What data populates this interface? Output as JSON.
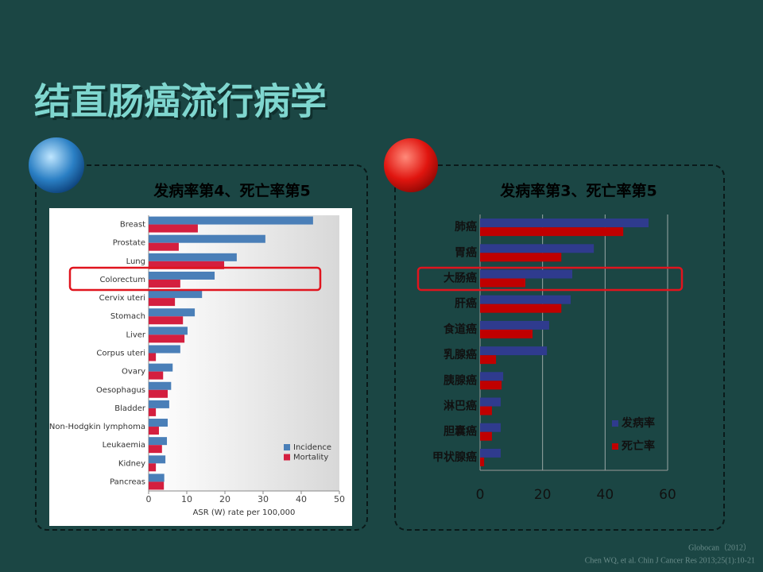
{
  "slide": {
    "title": "结直肠癌流行病学",
    "citation": [
      "Globocan（2012）",
      "Chen WQ, et al. Chin J Cancer Res 2013;25(1):10-21"
    ]
  },
  "chart_data": [
    {
      "type": "hbar",
      "title": "发病率第4、死亡率第5",
      "categories": [
        "Breast",
        "Prostate",
        "Lung",
        "Colorectum",
        "Cervix uteri",
        "Stomach",
        "Liver",
        "Corpus uteri",
        "Ovary",
        "Oesophagus",
        "Bladder",
        "Non-Hodgkin lymphoma",
        "Leukaemia",
        "Kidney",
        "Pancreas"
      ],
      "series": [
        {
          "name": "Incidence",
          "color": "#4a7fb8",
          "values": [
            43.1,
            30.6,
            23.1,
            17.3,
            14.0,
            12.1,
            10.2,
            8.3,
            6.3,
            5.9,
            5.4,
            5.0,
            4.8,
            4.4,
            4.1
          ]
        },
        {
          "name": "Mortality",
          "color": "#d41f3f",
          "values": [
            12.9,
            7.9,
            19.8,
            8.3,
            6.9,
            9.0,
            9.4,
            1.9,
            3.8,
            5.0,
            1.9,
            2.7,
            3.5,
            1.9,
            4.0
          ]
        }
      ],
      "xlabel": "ASR (W) rate per 100,000",
      "xlim": [
        0,
        50
      ],
      "xticks": [
        0,
        10,
        20,
        30,
        40,
        50
      ],
      "grid": false,
      "legend": "lower right"
    },
    {
      "type": "hbar",
      "title": "发病率第3、死亡率第5",
      "categories": [
        "肺癌",
        "胃癌",
        "大肠癌",
        "肝癌",
        "食道癌",
        "乳腺癌",
        "胰腺癌",
        "淋巴癌",
        "胆囊癌",
        "甲状腺癌"
      ],
      "series": [
        {
          "name": "发病率",
          "color": "#2f3b8e",
          "values": [
            53.9,
            36.4,
            29.5,
            29.0,
            22.1,
            21.4,
            7.4,
            6.6,
            6.6,
            6.6
          ]
        },
        {
          "name": "死亡率",
          "color": "#c00000",
          "values": [
            45.8,
            26.0,
            14.5,
            26.0,
            16.8,
            5.1,
            6.9,
            3.8,
            3.8,
            1.3
          ]
        }
      ],
      "xlim": [
        0,
        60
      ],
      "xticks": [
        0,
        20,
        40,
        60
      ],
      "grid": true,
      "legend": "lower right"
    }
  ]
}
